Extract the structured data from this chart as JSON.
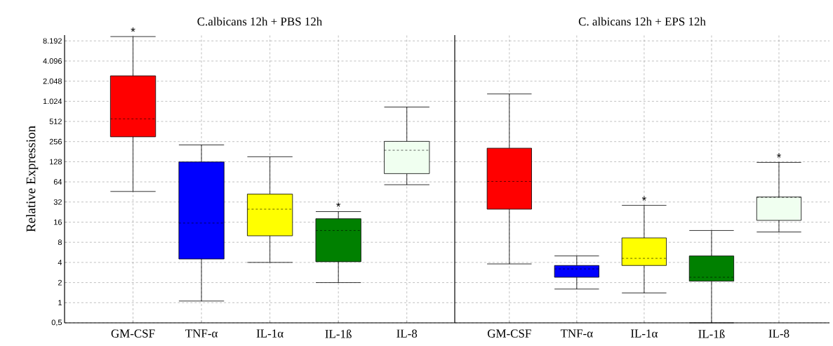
{
  "chart_data": [
    {
      "type": "box",
      "title": "C.albicans 12h + PBS 12h",
      "ylabel": "Relative Expression",
      "log": "y",
      "grid": true,
      "categories": [
        "GM-CSF",
        "TNF-α",
        "IL-1α",
        "IL-1ß",
        "IL-8"
      ],
      "colors": [
        "#ff0000",
        "#0000ff",
        "#ffff00",
        "#008000",
        "#f0fff0"
      ],
      "boxes": [
        {
          "low": 46,
          "q1": 302,
          "median": 560,
          "q3": 2460,
          "high": 9500
        },
        {
          "low": 1.06,
          "q1": 4.5,
          "median": 15.5,
          "q3": 127,
          "high": 228
        },
        {
          "low": 4,
          "q1": 10,
          "median": 25,
          "q3": 42,
          "high": 152
        },
        {
          "low": 2,
          "q1": 4.1,
          "median": 12,
          "q3": 18,
          "high": 23
        },
        {
          "low": 58,
          "q1": 85,
          "median": 190,
          "q3": 258,
          "high": 840
        }
      ],
      "annotations": [
        {
          "text": "*",
          "x": "GM-CSF",
          "y": 9500
        },
        {
          "text": "*",
          "x": "IL-1ß",
          "y": 23
        }
      ],
      "ylim": [
        0.5,
        10000
      ],
      "yticks": [
        {
          "value": 0.5,
          "label": "0,5"
        },
        1,
        2,
        4,
        8,
        16,
        32,
        64,
        128,
        256,
        512,
        {
          "value": 1024,
          "label": "1.024"
        },
        {
          "value": 2048,
          "label": "2.048"
        },
        {
          "value": 4096,
          "label": "4.096"
        },
        {
          "value": 8192,
          "label": "8.192"
        }
      ]
    },
    {
      "type": "box",
      "title": "C. albicans 12h + EPS 12h",
      "log": "y",
      "grid": true,
      "tick_labels": "x",
      "categories": [
        "GM-CSF",
        "TNF-α",
        "IL-1α",
        "IL-1ß",
        "IL-8"
      ],
      "colors": [
        "#ff0000",
        "#0000ff",
        "#ffff00",
        "#008000",
        "#f0fff0"
      ],
      "boxes": [
        {
          "low": 3.8,
          "q1": 25,
          "median": 65,
          "q3": 204,
          "high": 1320
        },
        {
          "low": 1.6,
          "q1": 2.4,
          "median": 3.2,
          "q3": 3.6,
          "high": 5
        },
        {
          "low": 1.4,
          "q1": 3.6,
          "median": 4.6,
          "q3": 9.3,
          "high": 28.5
        },
        {
          "low": 0.5,
          "q1": 2.1,
          "median": 2.4,
          "q3": 5,
          "high": 12
        },
        {
          "low": 11.4,
          "q1": 17,
          "median": 37.5,
          "q3": 38,
          "high": 125
        }
      ],
      "annotations": [
        {
          "text": "*",
          "x": "IL-1α",
          "y": 28.5
        },
        {
          "text": "*",
          "x": "IL-8",
          "y": 125
        }
      ],
      "ylim": [
        0.5,
        10000
      ],
      "yticks": [
        {
          "value": 0.5,
          "label": null
        },
        1,
        2,
        4,
        8,
        16,
        32,
        64,
        128,
        256,
        512,
        {
          "value": 1024,
          "label": null
        },
        {
          "value": 2048,
          "label": null
        },
        {
          "value": 4096,
          "label": null
        },
        {
          "value": 8192,
          "label": null
        }
      ]
    }
  ]
}
